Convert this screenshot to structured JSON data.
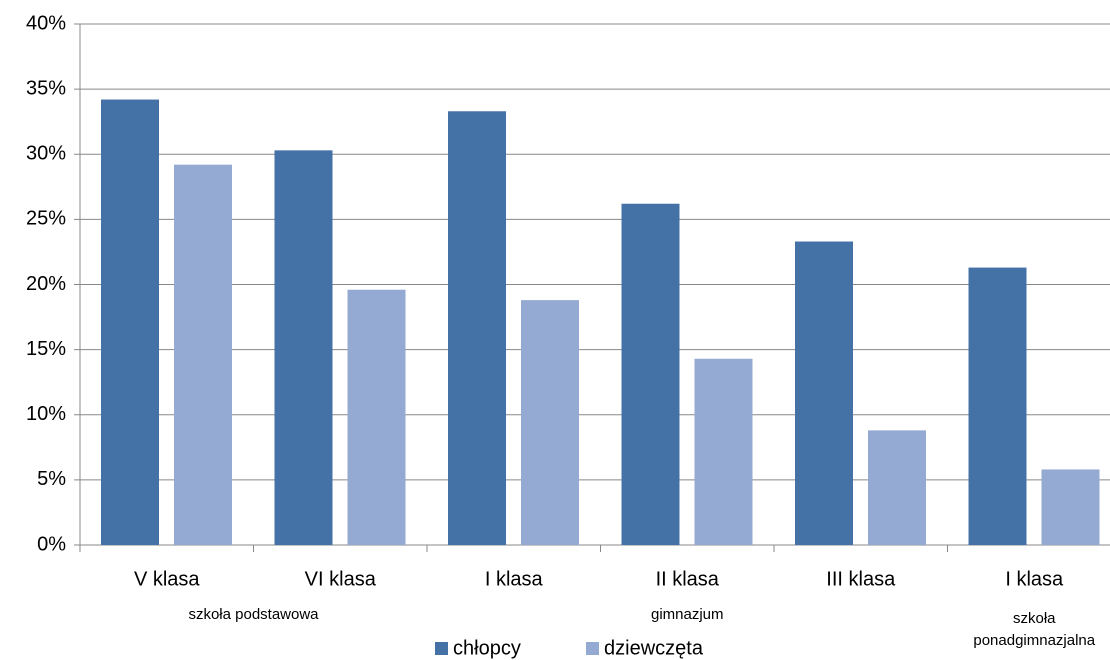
{
  "chart_data": {
    "type": "bar",
    "categories": [
      "V klasa",
      "VI klasa",
      "I klasa",
      "II klasa",
      "III klasa",
      "I klasa"
    ],
    "groups": [
      "szkoła podstawowa",
      "gimnazjum",
      "szkoła ponadgimnazjalna"
    ],
    "series": [
      {
        "name": "chłopcy",
        "color": "#4472a7",
        "values": [
          34.2,
          30.3,
          33.3,
          26.2,
          23.3,
          21.3
        ]
      },
      {
        "name": "dziewczęta",
        "color": "#95aad2",
        "values": [
          29.2,
          19.6,
          18.8,
          14.3,
          8.8,
          5.8
        ]
      }
    ],
    "ylim": [
      0,
      40
    ],
    "yticks": [
      {
        "value": 0,
        "label": "0%"
      },
      {
        "value": 5,
        "label": "5%"
      },
      {
        "value": 10,
        "label": "10%"
      },
      {
        "value": 15,
        "label": "15%"
      },
      {
        "value": 20,
        "label": "20%"
      },
      {
        "value": 25,
        "label": "25%"
      },
      {
        "value": 30,
        "label": "30%"
      },
      {
        "value": 35,
        "label": "35%"
      },
      {
        "value": 40,
        "label": "40%"
      }
    ],
    "grid": true,
    "legend": "bottom"
  }
}
